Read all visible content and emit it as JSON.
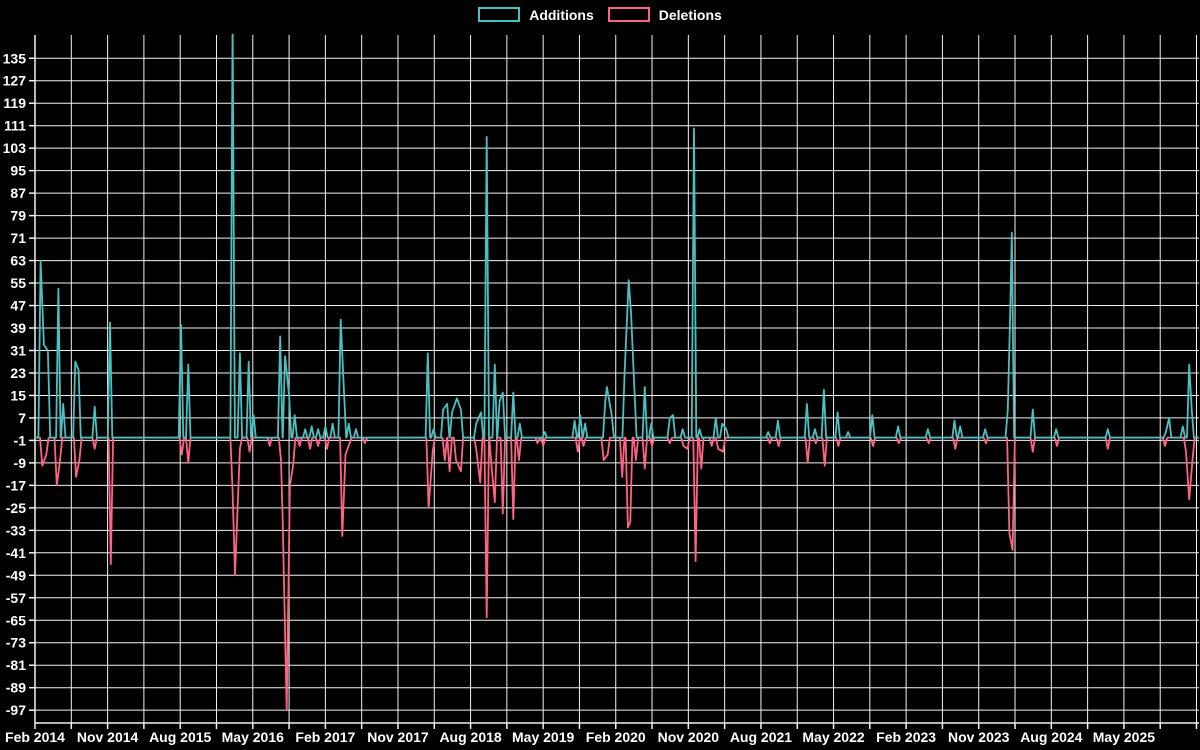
{
  "colors": {
    "background": "#000000",
    "grid": "#f2f2f2",
    "text": "#ffffff",
    "additions": "#4bc0c0",
    "deletions": "#ff6384"
  },
  "legend": {
    "items": [
      {
        "label": "Additions",
        "color": "#4bc0c0"
      },
      {
        "label": "Deletions",
        "color": "#ff6384"
      }
    ]
  },
  "chart_data": {
    "type": "line",
    "title": "",
    "legend": [
      "Additions",
      "Deletions"
    ],
    "legend_position": "top-center",
    "grid": true,
    "background": "#000000",
    "x_axis": {
      "unit": "months since Feb 2014",
      "tick_labels": [
        "Feb 2014",
        "Nov 2014",
        "Aug 2015",
        "May 2016",
        "Feb 2017",
        "Nov 2017",
        "Aug 2018",
        "May 2019",
        "Feb 2020",
        "Nov 2020",
        "Aug 2021",
        "May 2022",
        "Feb 2023",
        "Nov 2023",
        "Aug 2024",
        "May 2025"
      ],
      "label_interval_months": 9,
      "gridline_interval_months": 4.5,
      "range_months": [
        0,
        144.3
      ]
    },
    "y_axis": {
      "ticks": [
        135,
        127,
        119,
        111,
        103,
        95,
        87,
        79,
        71,
        63,
        55,
        47,
        39,
        31,
        23,
        15,
        7,
        -1,
        -9,
        -17,
        -25,
        -33,
        -41,
        -49,
        -57,
        -65,
        -73,
        -81,
        -89,
        -97
      ],
      "tick_step": 8,
      "ylim": [
        -101,
        143
      ]
    },
    "note": "Spiky weekly commit additions/deletions; baseline 0 between spikes. Additions spike at month 24.5 (~Mar 2016) is clipped by the chart top (value > 143).",
    "series": [
      {
        "name": "Additions",
        "color": "#4bc0c0",
        "baseline": 0,
        "spikes": [
          [
            0.7,
            63
          ],
          [
            1.1,
            33
          ],
          [
            1.6,
            31
          ],
          [
            2.9,
            53
          ],
          [
            3.5,
            12
          ],
          [
            5.0,
            27
          ],
          [
            5.4,
            24
          ],
          [
            7.4,
            11
          ],
          [
            9.3,
            41
          ],
          [
            18.1,
            40
          ],
          [
            19.0,
            26
          ],
          [
            24.5,
            148
          ],
          [
            25.4,
            30
          ],
          [
            26.5,
            27
          ],
          [
            27.1,
            8
          ],
          [
            30.4,
            36
          ],
          [
            31.0,
            29
          ],
          [
            31.5,
            15
          ],
          [
            32.2,
            8
          ],
          [
            33.5,
            3
          ],
          [
            34.3,
            4
          ],
          [
            35.1,
            3
          ],
          [
            36.0,
            4
          ],
          [
            36.9,
            5
          ],
          [
            37.9,
            42
          ],
          [
            38.3,
            17
          ],
          [
            38.9,
            5
          ],
          [
            39.8,
            3
          ],
          [
            48.7,
            30
          ],
          [
            49.4,
            3
          ],
          [
            50.6,
            10
          ],
          [
            51.1,
            12
          ],
          [
            51.7,
            9
          ],
          [
            52.3,
            14
          ],
          [
            52.8,
            10
          ],
          [
            54.7,
            5
          ],
          [
            55.3,
            9
          ],
          [
            56.0,
            107
          ],
          [
            57.0,
            26
          ],
          [
            57.6,
            13
          ],
          [
            58.0,
            16
          ],
          [
            59.3,
            16
          ],
          [
            60.1,
            5
          ],
          [
            63.2,
            2
          ],
          [
            66.9,
            6
          ],
          [
            67.6,
            8
          ],
          [
            68.2,
            5
          ],
          [
            70.7,
            13
          ],
          [
            70.9,
            18
          ],
          [
            71.5,
            8
          ],
          [
            73.1,
            23
          ],
          [
            73.6,
            56
          ],
          [
            73.9,
            44
          ],
          [
            74.3,
            18
          ],
          [
            75.6,
            18
          ],
          [
            76.4,
            5
          ],
          [
            78.7,
            7
          ],
          [
            79.1,
            8
          ],
          [
            80.3,
            3
          ],
          [
            81.7,
            110
          ],
          [
            82.4,
            3
          ],
          [
            84.4,
            7
          ],
          [
            85.2,
            5
          ],
          [
            85.7,
            3
          ],
          [
            90.9,
            2
          ],
          [
            92.1,
            6
          ],
          [
            95.7,
            12
          ],
          [
            96.7,
            3
          ],
          [
            97.8,
            17
          ],
          [
            99.5,
            9
          ],
          [
            100.8,
            2
          ],
          [
            103.8,
            8
          ],
          [
            107.0,
            4
          ],
          [
            110.7,
            3
          ],
          [
            114.0,
            6
          ],
          [
            114.7,
            4
          ],
          [
            117.8,
            3
          ],
          [
            120.6,
            10
          ],
          [
            120.9,
            44
          ],
          [
            121.1,
            73
          ],
          [
            123.7,
            10
          ],
          [
            126.6,
            3
          ],
          [
            133.0,
            3
          ],
          [
            140.2,
            2
          ],
          [
            140.6,
            7
          ],
          [
            142.3,
            4
          ],
          [
            143.1,
            26
          ],
          [
            143.4,
            10
          ]
        ]
      },
      {
        "name": "Deletions",
        "color": "#ff6384",
        "baseline": 0,
        "spikes": [
          [
            0.9,
            -10
          ],
          [
            1.4,
            -6
          ],
          [
            2.7,
            -17
          ],
          [
            3.1,
            -8
          ],
          [
            5.1,
            -14
          ],
          [
            5.5,
            -8
          ],
          [
            7.4,
            -4
          ],
          [
            9.4,
            -45
          ],
          [
            18.2,
            -6
          ],
          [
            19.0,
            -9
          ],
          [
            24.5,
            -19
          ],
          [
            24.8,
            -49
          ],
          [
            25.4,
            -4
          ],
          [
            26.6,
            -5
          ],
          [
            29.1,
            -3
          ],
          [
            30.5,
            -8
          ],
          [
            30.7,
            -28
          ],
          [
            31.2,
            -97
          ],
          [
            31.6,
            -17
          ],
          [
            32.0,
            -10
          ],
          [
            32.8,
            -3
          ],
          [
            34.1,
            -4
          ],
          [
            35.1,
            -3
          ],
          [
            36.2,
            -4
          ],
          [
            38.1,
            -35
          ],
          [
            38.5,
            -6
          ],
          [
            39.0,
            -2
          ],
          [
            40.9,
            -2
          ],
          [
            48.8,
            -25
          ],
          [
            49.3,
            -5
          ],
          [
            50.8,
            -8
          ],
          [
            51.4,
            -12
          ],
          [
            52.2,
            -8
          ],
          [
            52.8,
            -12
          ],
          [
            54.7,
            -4
          ],
          [
            55.2,
            -16
          ],
          [
            56.0,
            -64
          ],
          [
            56.6,
            -10
          ],
          [
            57.0,
            -23
          ],
          [
            58.0,
            -27
          ],
          [
            59.3,
            -29
          ],
          [
            60.0,
            -8
          ],
          [
            62.3,
            -2
          ],
          [
            63.0,
            -3
          ],
          [
            67.3,
            -5
          ],
          [
            68.0,
            -3
          ],
          [
            70.5,
            -8
          ],
          [
            71.0,
            -6
          ],
          [
            72.8,
            -14
          ],
          [
            73.5,
            -32
          ],
          [
            73.8,
            -30
          ],
          [
            74.5,
            -8
          ],
          [
            75.6,
            -11
          ],
          [
            76.5,
            -3
          ],
          [
            78.7,
            -2
          ],
          [
            80.4,
            -3
          ],
          [
            80.9,
            -4
          ],
          [
            81.9,
            -44
          ],
          [
            82.6,
            -11
          ],
          [
            83.9,
            -3
          ],
          [
            84.7,
            -4
          ],
          [
            85.3,
            -5
          ],
          [
            91.1,
            -2
          ],
          [
            92.2,
            -3
          ],
          [
            95.8,
            -9
          ],
          [
            96.8,
            -2
          ],
          [
            97.9,
            -10
          ],
          [
            99.6,
            -3
          ],
          [
            103.9,
            -3
          ],
          [
            107.1,
            -2
          ],
          [
            110.8,
            -2
          ],
          [
            114.1,
            -4
          ],
          [
            117.9,
            -2
          ],
          [
            120.8,
            -34
          ],
          [
            121.2,
            -40
          ],
          [
            123.7,
            -5
          ],
          [
            126.7,
            -3
          ],
          [
            133.0,
            -4
          ],
          [
            140.1,
            -3
          ],
          [
            142.7,
            -5
          ],
          [
            143.1,
            -22
          ],
          [
            143.5,
            -8
          ]
        ]
      }
    ]
  }
}
